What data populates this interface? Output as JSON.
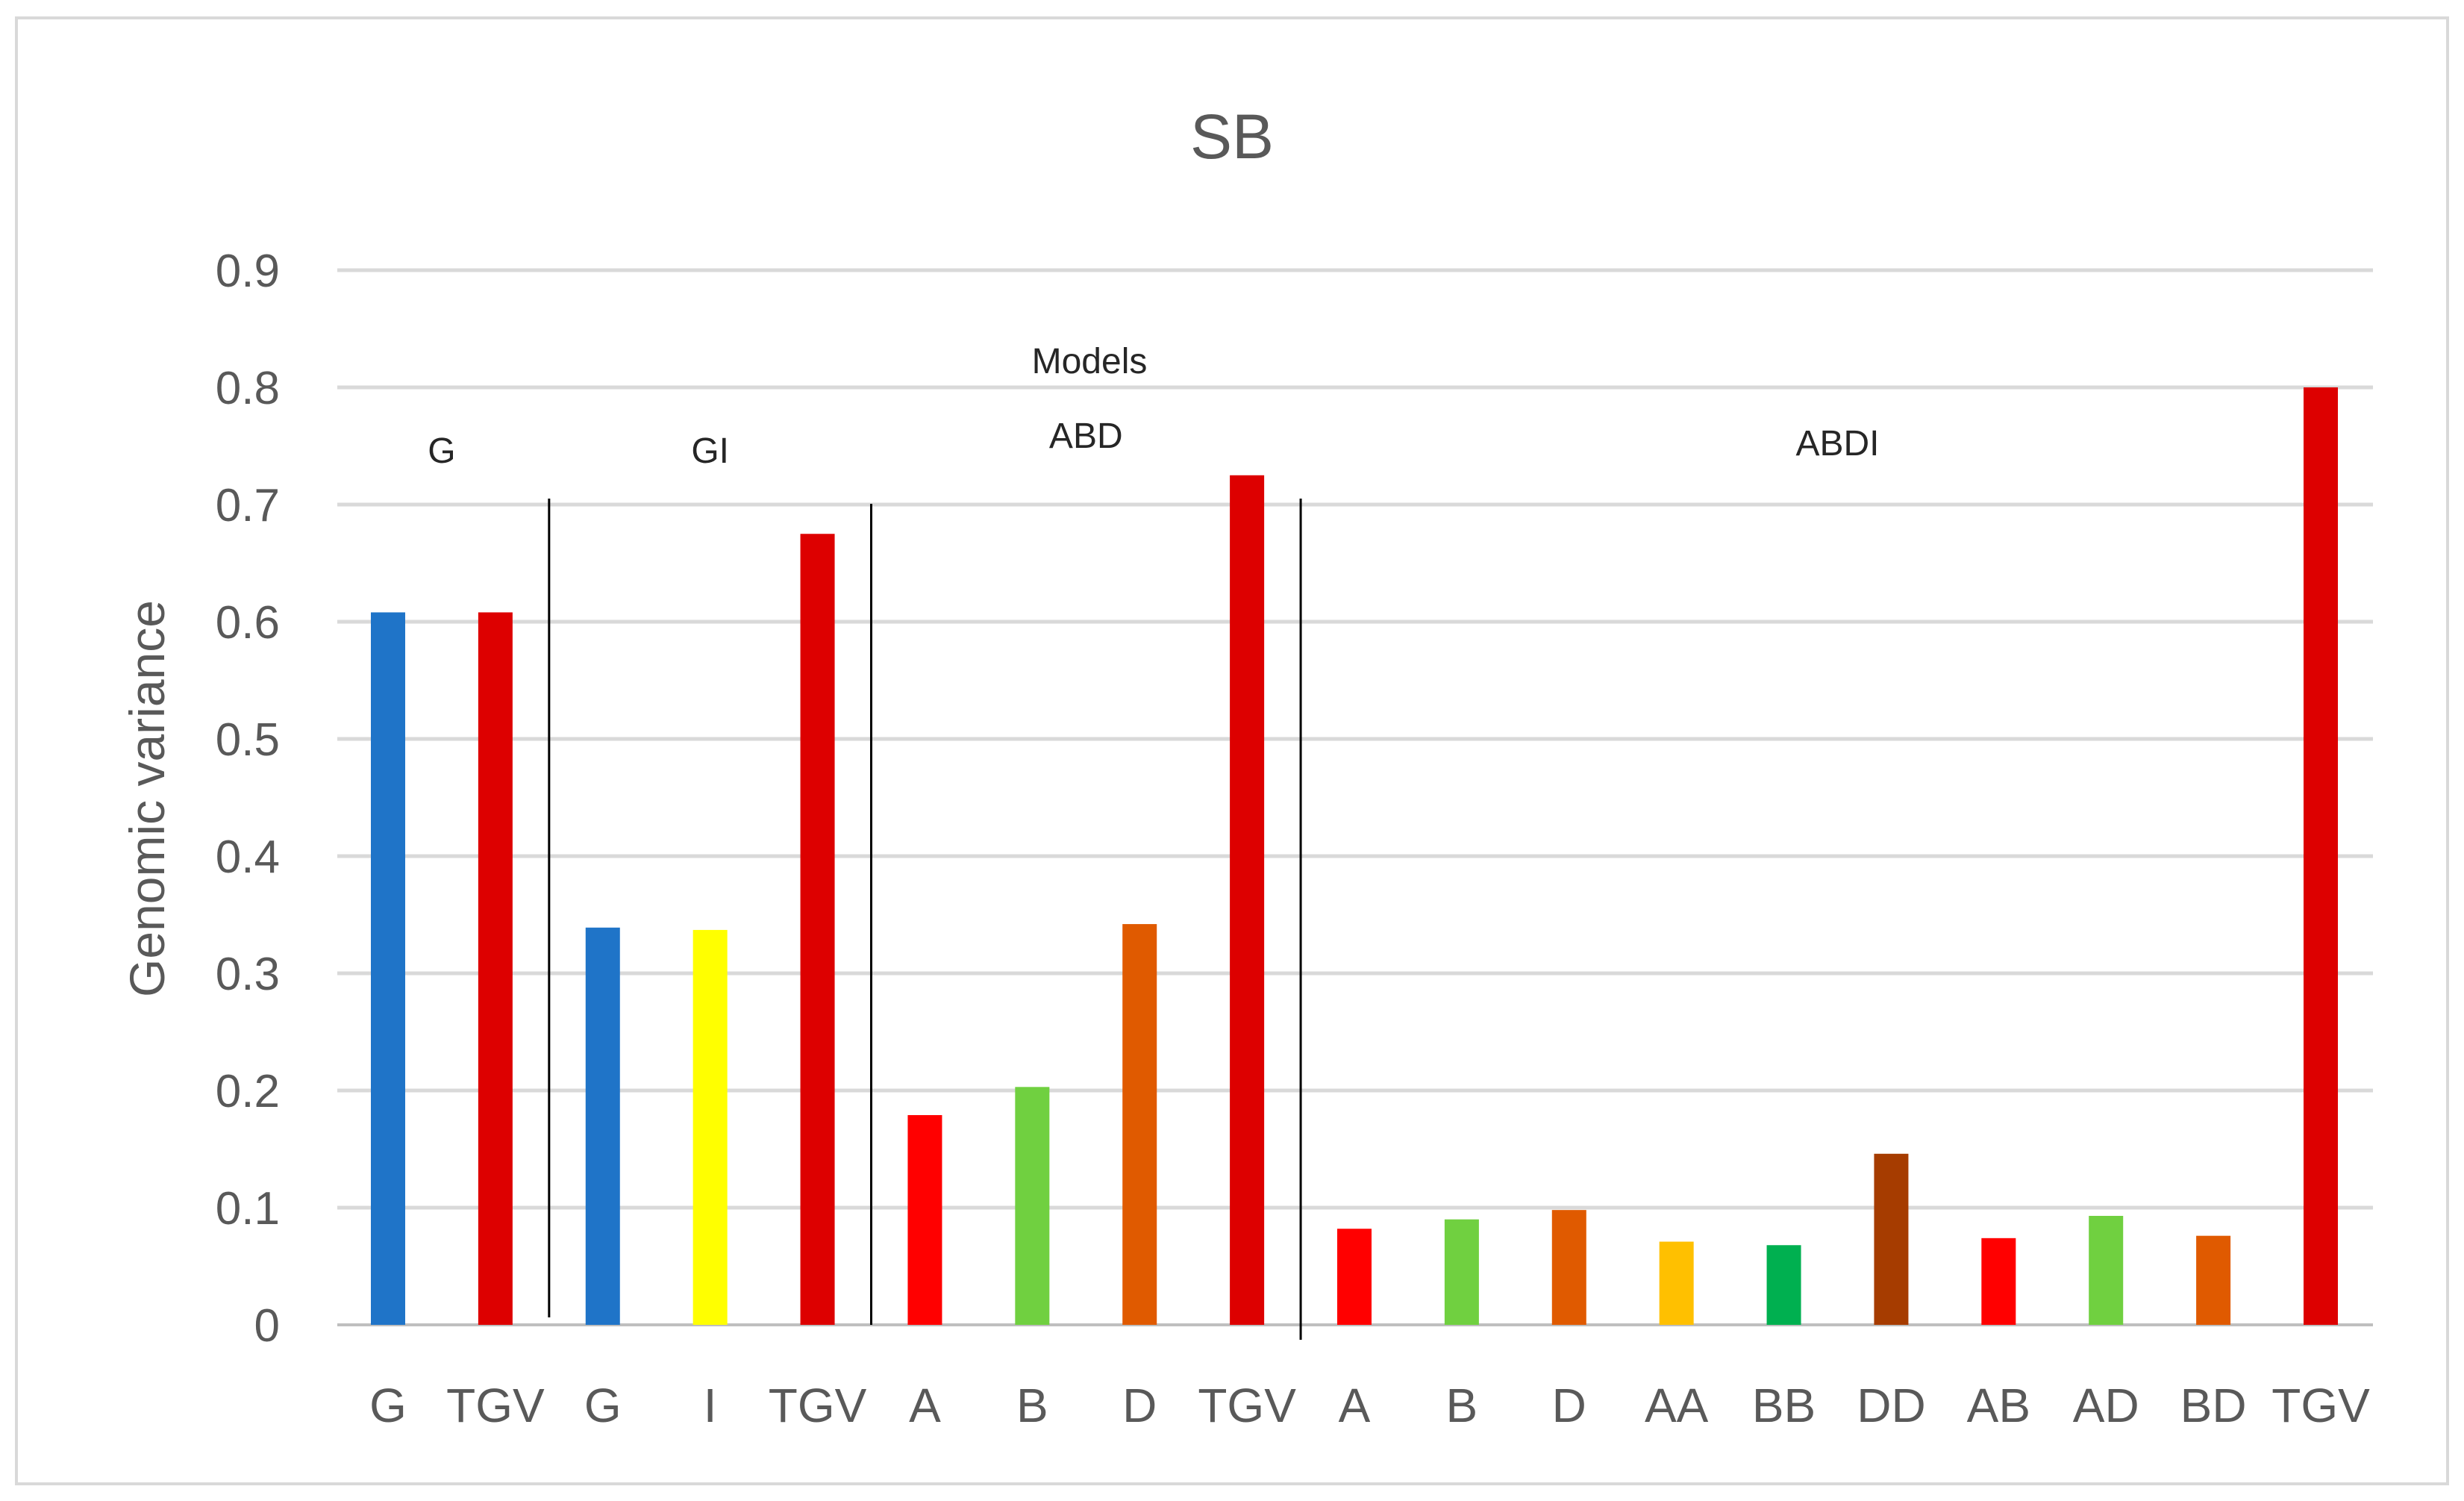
{
  "chart_data": {
    "type": "bar",
    "title": "SB",
    "xlabel": "",
    "ylabel": "Genomic  variance",
    "ylim": [
      0,
      0.9
    ],
    "yticks": [
      "0",
      "0.1",
      "0.2",
      "0.3",
      "0.4",
      "0.5",
      "0.6",
      "0.7",
      "0.8",
      "0.9"
    ],
    "grid": true,
    "annotation": "Models",
    "categories": [
      "G",
      "TGV",
      "G",
      "I",
      "TGV",
      "A",
      "B",
      "D",
      "TGV",
      "A",
      "B",
      "D",
      "AA",
      "BB",
      "DD",
      "AB",
      "AD",
      "BD",
      "TGV"
    ],
    "values": [
      0.608,
      0.608,
      0.339,
      0.337,
      0.675,
      0.179,
      0.203,
      0.342,
      0.725,
      0.082,
      0.09,
      0.098,
      0.071,
      0.068,
      0.146,
      0.074,
      0.093,
      0.076,
      0.8
    ],
    "colors": [
      "#1f74c8",
      "#dd0000",
      "#1f74c8",
      "#ffff00",
      "#dd0000",
      "#ff0000",
      "#70d040",
      "#e05a00",
      "#dd0000",
      "#ff0000",
      "#70d040",
      "#e05a00",
      "#ffc000",
      "#00b050",
      "#a63c00",
      "#ff0000",
      "#70d040",
      "#e05a00",
      "#dd0000"
    ],
    "groups": [
      {
        "name": "G",
        "start": 0,
        "end": 1
      },
      {
        "name": "GI",
        "start": 2,
        "end": 4
      },
      {
        "name": "ABD",
        "start": 5,
        "end": 8
      },
      {
        "name": "ABDI",
        "start": 9,
        "end": 18
      }
    ]
  }
}
